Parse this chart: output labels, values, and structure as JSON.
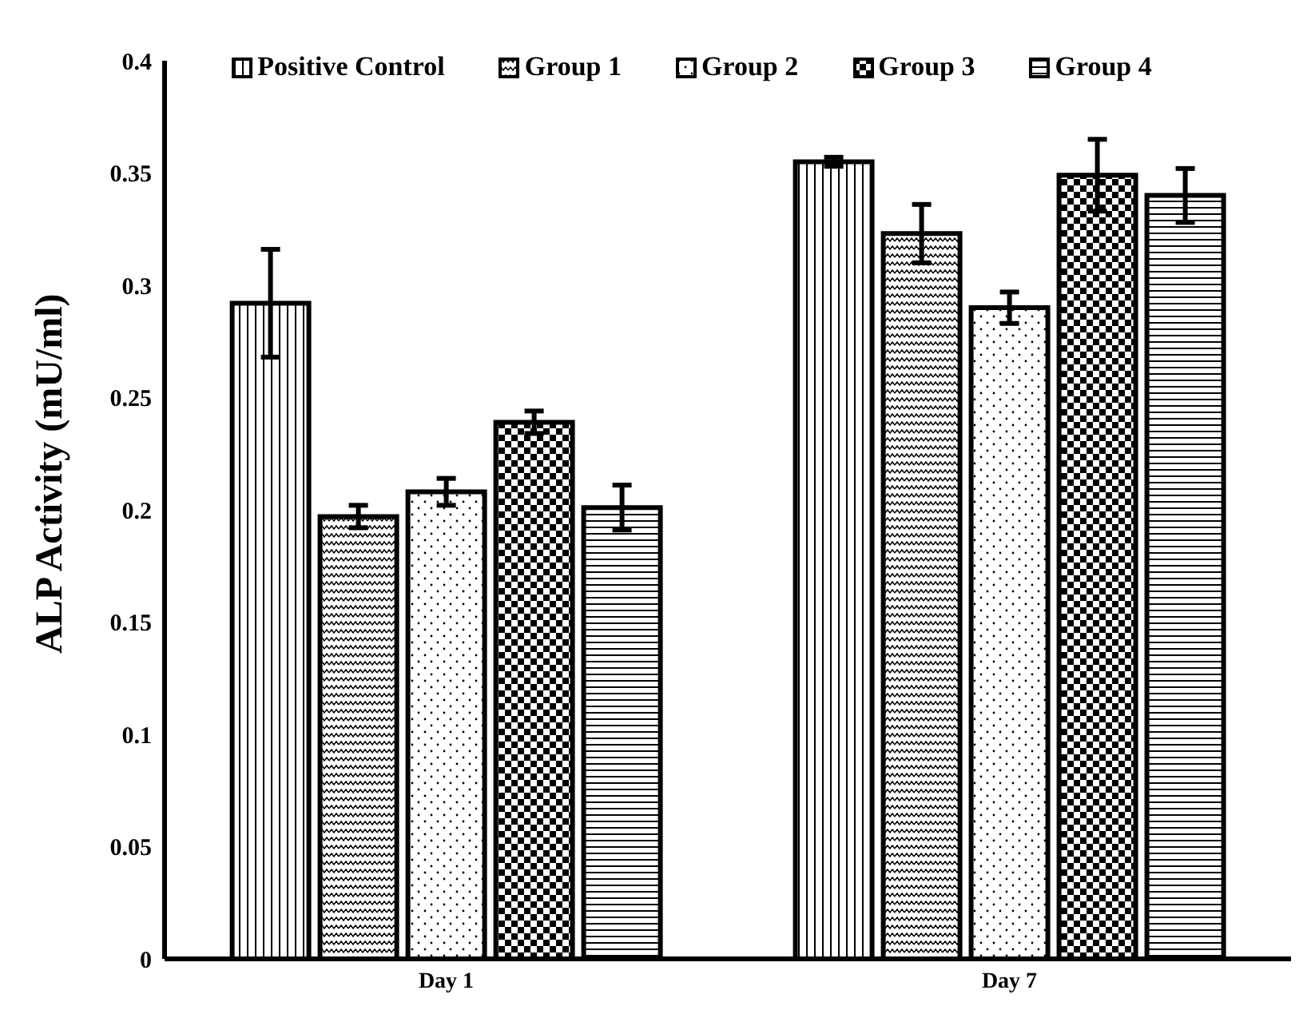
{
  "chart_data": {
    "type": "bar",
    "ylabel": "ALP Activity (mU/ml)",
    "categories": [
      "Day 1",
      "Day 7"
    ],
    "series": [
      {
        "name": "Positive Control",
        "color": "#000000",
        "values": [
          0.292,
          0.355
        ],
        "errors": [
          0.024,
          0.002
        ]
      },
      {
        "name": "Group 1",
        "color": "#000000",
        "values": [
          0.197,
          0.323
        ],
        "errors": [
          0.005,
          0.013
        ]
      },
      {
        "name": "Group 2",
        "color": "#000000",
        "values": [
          0.208,
          0.29
        ],
        "errors": [
          0.006,
          0.007
        ]
      },
      {
        "name": "Group 3",
        "color": "#000000",
        "values": [
          0.239,
          0.349
        ],
        "errors": [
          0.005,
          0.016
        ]
      },
      {
        "name": "Group 4",
        "color": "#000000",
        "values": [
          0.201,
          0.34
        ],
        "errors": [
          0.01,
          0.012
        ]
      }
    ],
    "ylim": [
      0,
      0.4
    ],
    "yticks": [
      0,
      0.05,
      0.1,
      0.15,
      0.2,
      0.25,
      0.3,
      0.35,
      0.4
    ],
    "grid": false,
    "legend": "top"
  }
}
